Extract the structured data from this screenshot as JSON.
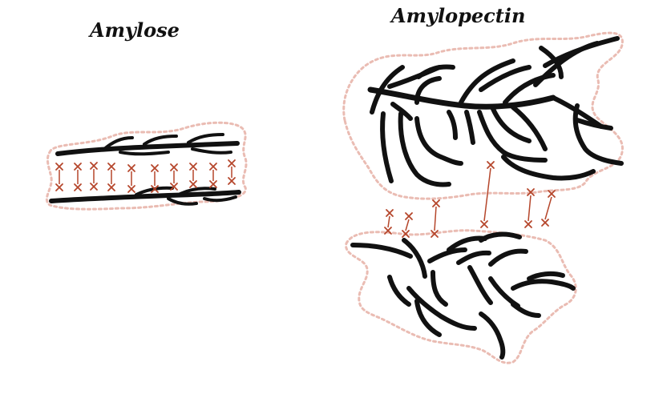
{
  "titles": {
    "left": "Amylose",
    "right": "Amylopectin"
  },
  "colors": {
    "strand": "#111111",
    "bond": "#b5462b",
    "outline": "#e3a59a"
  }
}
